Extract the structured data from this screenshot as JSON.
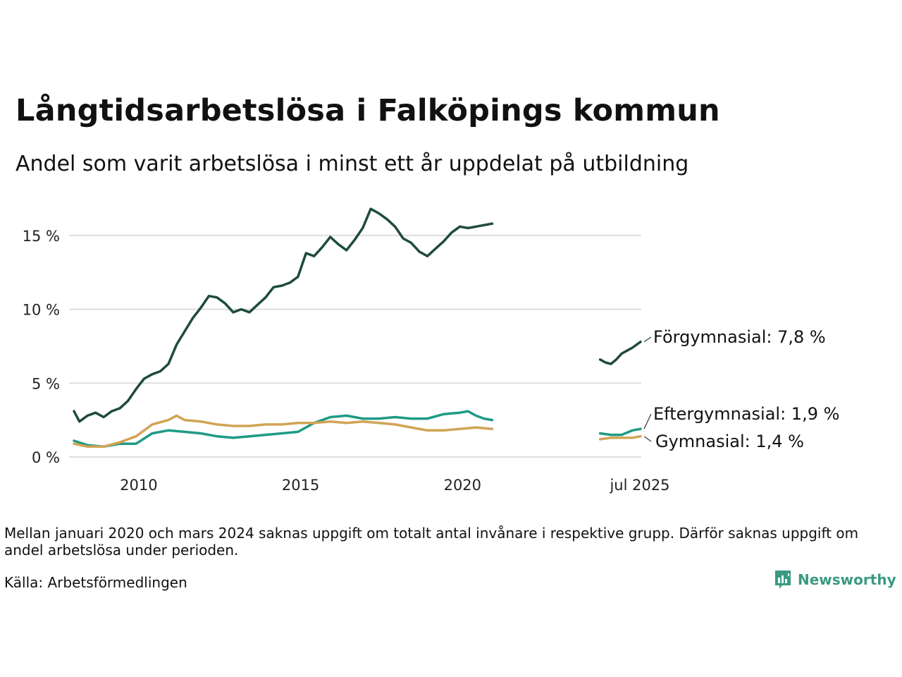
{
  "title": "Långtidsarbetslösa i Falköpings kommun",
  "subtitle": "Andel som varit arbetslösa i minst ett år uppdelat på utbildning",
  "note": "Mellan januari 2020 och mars 2024 saknas uppgift om totalt antal invånare i respektive grupp. Därför saknas uppgift om andel arbetslösa under perioden.",
  "source": "Källa: Arbetsförmedlingen",
  "brand": "Newsworthy",
  "chart_data": {
    "type": "line",
    "title": "Långtidsarbetslösa i Falköpings kommun",
    "xlabel": "",
    "ylabel": "",
    "xlim": [
      "2008-01",
      "2025-07"
    ],
    "ylim": [
      0,
      17
    ],
    "yticks": [
      0,
      5,
      10,
      15
    ],
    "ytick_labels": [
      "0 %",
      "5 %",
      "10 %",
      "15 %"
    ],
    "xticks": [
      "2010-01",
      "2015-01",
      "2020-01",
      "2025-07"
    ],
    "xtick_labels": [
      "2010",
      "2015",
      "2020",
      "jul 2025"
    ],
    "grid": "horizontal",
    "legend": "end labels",
    "series": [
      {
        "name": "Förgymnasial",
        "end_label": "Förgymnasial: 7,8 %",
        "color": "#1f4a3f",
        "segments": [
          [
            [
              "2008-01",
              3.1
            ],
            [
              "2008-03",
              2.4
            ],
            [
              "2008-06",
              2.8
            ],
            [
              "2008-09",
              3.0
            ],
            [
              "2008-12",
              2.7
            ],
            [
              "2009-03",
              3.1
            ],
            [
              "2009-06",
              3.3
            ],
            [
              "2009-09",
              3.8
            ],
            [
              "2009-12",
              4.6
            ],
            [
              "2010-03",
              5.3
            ],
            [
              "2010-06",
              5.6
            ],
            [
              "2010-09",
              5.8
            ],
            [
              "2010-12",
              6.3
            ],
            [
              "2011-03",
              7.6
            ],
            [
              "2011-06",
              8.5
            ],
            [
              "2011-09",
              9.4
            ],
            [
              "2011-12",
              10.1
            ],
            [
              "2012-03",
              10.9
            ],
            [
              "2012-06",
              10.8
            ],
            [
              "2012-09",
              10.4
            ],
            [
              "2012-12",
              9.8
            ],
            [
              "2013-03",
              10.0
            ],
            [
              "2013-06",
              9.8
            ],
            [
              "2013-09",
              10.3
            ],
            [
              "2013-12",
              10.8
            ],
            [
              "2014-03",
              11.5
            ],
            [
              "2014-06",
              11.6
            ],
            [
              "2014-09",
              11.8
            ],
            [
              "2014-12",
              12.2
            ],
            [
              "2015-03",
              13.8
            ],
            [
              "2015-06",
              13.6
            ],
            [
              "2015-09",
              14.2
            ],
            [
              "2015-12",
              14.9
            ],
            [
              "2016-03",
              14.4
            ],
            [
              "2016-06",
              14.0
            ],
            [
              "2016-09",
              14.7
            ],
            [
              "2016-12",
              15.5
            ],
            [
              "2017-03",
              16.8
            ],
            [
              "2017-06",
              16.5
            ],
            [
              "2017-09",
              16.1
            ],
            [
              "2017-12",
              15.6
            ],
            [
              "2018-03",
              14.8
            ],
            [
              "2018-06",
              14.5
            ],
            [
              "2018-09",
              13.9
            ],
            [
              "2018-12",
              13.6
            ],
            [
              "2019-03",
              14.1
            ],
            [
              "2019-06",
              14.6
            ],
            [
              "2019-09",
              15.2
            ],
            [
              "2019-12",
              15.6
            ],
            [
              "2020-03",
              15.5
            ],
            [
              "2020-06",
              15.6
            ],
            [
              "2020-09",
              15.7
            ],
            [
              "2020-12",
              15.8
            ]
          ],
          [
            [
              "2024-04",
              6.6
            ],
            [
              "2024-06",
              6.4
            ],
            [
              "2024-08",
              6.3
            ],
            [
              "2024-10",
              6.6
            ],
            [
              "2024-12",
              7.0
            ],
            [
              "2025-02",
              7.2
            ],
            [
              "2025-04",
              7.4
            ],
            [
              "2025-07",
              7.8
            ]
          ]
        ]
      },
      {
        "name": "Eftergymnasial",
        "end_label": "Eftergymnasial: 1,9 %",
        "color": "#1e9a84",
        "segments": [
          [
            [
              "2008-01",
              1.1
            ],
            [
              "2008-06",
              0.8
            ],
            [
              "2008-12",
              0.7
            ],
            [
              "2009-06",
              0.9
            ],
            [
              "2009-12",
              0.9
            ],
            [
              "2010-06",
              1.6
            ],
            [
              "2010-12",
              1.8
            ],
            [
              "2011-06",
              1.7
            ],
            [
              "2011-12",
              1.6
            ],
            [
              "2012-06",
              1.4
            ],
            [
              "2012-12",
              1.3
            ],
            [
              "2013-06",
              1.4
            ],
            [
              "2013-12",
              1.5
            ],
            [
              "2014-06",
              1.6
            ],
            [
              "2014-12",
              1.7
            ],
            [
              "2015-06",
              2.3
            ],
            [
              "2015-12",
              2.7
            ],
            [
              "2016-06",
              2.8
            ],
            [
              "2016-12",
              2.6
            ],
            [
              "2017-06",
              2.6
            ],
            [
              "2017-12",
              2.7
            ],
            [
              "2018-06",
              2.6
            ],
            [
              "2018-12",
              2.6
            ],
            [
              "2019-06",
              2.9
            ],
            [
              "2019-12",
              3.0
            ],
            [
              "2020-03",
              3.1
            ],
            [
              "2020-06",
              2.8
            ],
            [
              "2020-09",
              2.6
            ],
            [
              "2020-12",
              2.5
            ]
          ],
          [
            [
              "2024-04",
              1.6
            ],
            [
              "2024-08",
              1.5
            ],
            [
              "2024-12",
              1.5
            ],
            [
              "2025-04",
              1.8
            ],
            [
              "2025-07",
              1.9
            ]
          ]
        ]
      },
      {
        "name": "Gymnasial",
        "end_label": "Gymnasial: 1,4 %",
        "color": "#d1a455",
        "segments": [
          [
            [
              "2008-01",
              0.9
            ],
            [
              "2008-06",
              0.7
            ],
            [
              "2008-12",
              0.7
            ],
            [
              "2009-06",
              1.0
            ],
            [
              "2009-12",
              1.4
            ],
            [
              "2010-06",
              2.2
            ],
            [
              "2010-12",
              2.5
            ],
            [
              "2011-03",
              2.8
            ],
            [
              "2011-06",
              2.5
            ],
            [
              "2011-12",
              2.4
            ],
            [
              "2012-06",
              2.2
            ],
            [
              "2012-12",
              2.1
            ],
            [
              "2013-06",
              2.1
            ],
            [
              "2013-12",
              2.2
            ],
            [
              "2014-06",
              2.2
            ],
            [
              "2014-12",
              2.3
            ],
            [
              "2015-06",
              2.3
            ],
            [
              "2015-12",
              2.4
            ],
            [
              "2016-06",
              2.3
            ],
            [
              "2016-12",
              2.4
            ],
            [
              "2017-06",
              2.3
            ],
            [
              "2017-12",
              2.2
            ],
            [
              "2018-06",
              2.0
            ],
            [
              "2018-12",
              1.8
            ],
            [
              "2019-06",
              1.8
            ],
            [
              "2019-12",
              1.9
            ],
            [
              "2020-06",
              2.0
            ],
            [
              "2020-12",
              1.9
            ]
          ],
          [
            [
              "2024-04",
              1.2
            ],
            [
              "2024-08",
              1.3
            ],
            [
              "2024-12",
              1.3
            ],
            [
              "2025-04",
              1.3
            ],
            [
              "2025-07",
              1.4
            ]
          ]
        ]
      }
    ]
  }
}
